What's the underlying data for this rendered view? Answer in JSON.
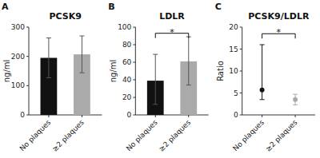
{
  "chart_data": [
    {
      "type": "bar",
      "title": "PCSK9",
      "ylabel": "ng/ml",
      "categories": [
        "No plaques",
        "≥2 plaques"
      ],
      "values": [
        195,
        207
      ],
      "errors_upper": [
        68,
        63
      ],
      "errors_lower": [
        68,
        63
      ],
      "colors": [
        "#111111",
        "#aaaaaa"
      ],
      "ylim": [
        0,
        300
      ],
      "yticks": [
        0,
        100,
        200,
        300
      ],
      "grid": false,
      "annotations": [
        {
          "text": "A"
        }
      ]
    },
    {
      "type": "bar",
      "title": "LDLR",
      "ylabel": "ng/ml",
      "categories": [
        "No plaques",
        "≥2 plaques"
      ],
      "values": [
        39,
        61
      ],
      "errors_upper": [
        30,
        28
      ],
      "errors_lower": [
        27,
        27
      ],
      "colors": [
        "#111111",
        "#aaaaaa"
      ],
      "ylim": [
        0,
        100
      ],
      "yticks": [
        0,
        20,
        40,
        60,
        80,
        100
      ],
      "grid": false,
      "annotations": [
        {
          "text": "B"
        },
        {
          "text": "*",
          "y": 93,
          "x": [
            0,
            1
          ]
        }
      ]
    },
    {
      "type": "scatter",
      "title": "PCSK9/LDLR",
      "ylabel": "Ratio",
      "categories": [
        "No plaques",
        "≥2 plaques"
      ],
      "values": [
        5.7,
        3.5
      ],
      "errors_upper": [
        10.3,
        1.2
      ],
      "errors_lower": [
        2.2,
        1.2
      ],
      "colors": [
        "#111111",
        "#aaaaaa"
      ],
      "marker": "circle",
      "ylim": [
        0,
        20
      ],
      "yticks": [
        0,
        5,
        10,
        15,
        20
      ],
      "grid": false,
      "annotations": [
        {
          "text": "C"
        },
        {
          "text": "*",
          "y": 18.5,
          "x": [
            0,
            1
          ]
        }
      ]
    }
  ]
}
